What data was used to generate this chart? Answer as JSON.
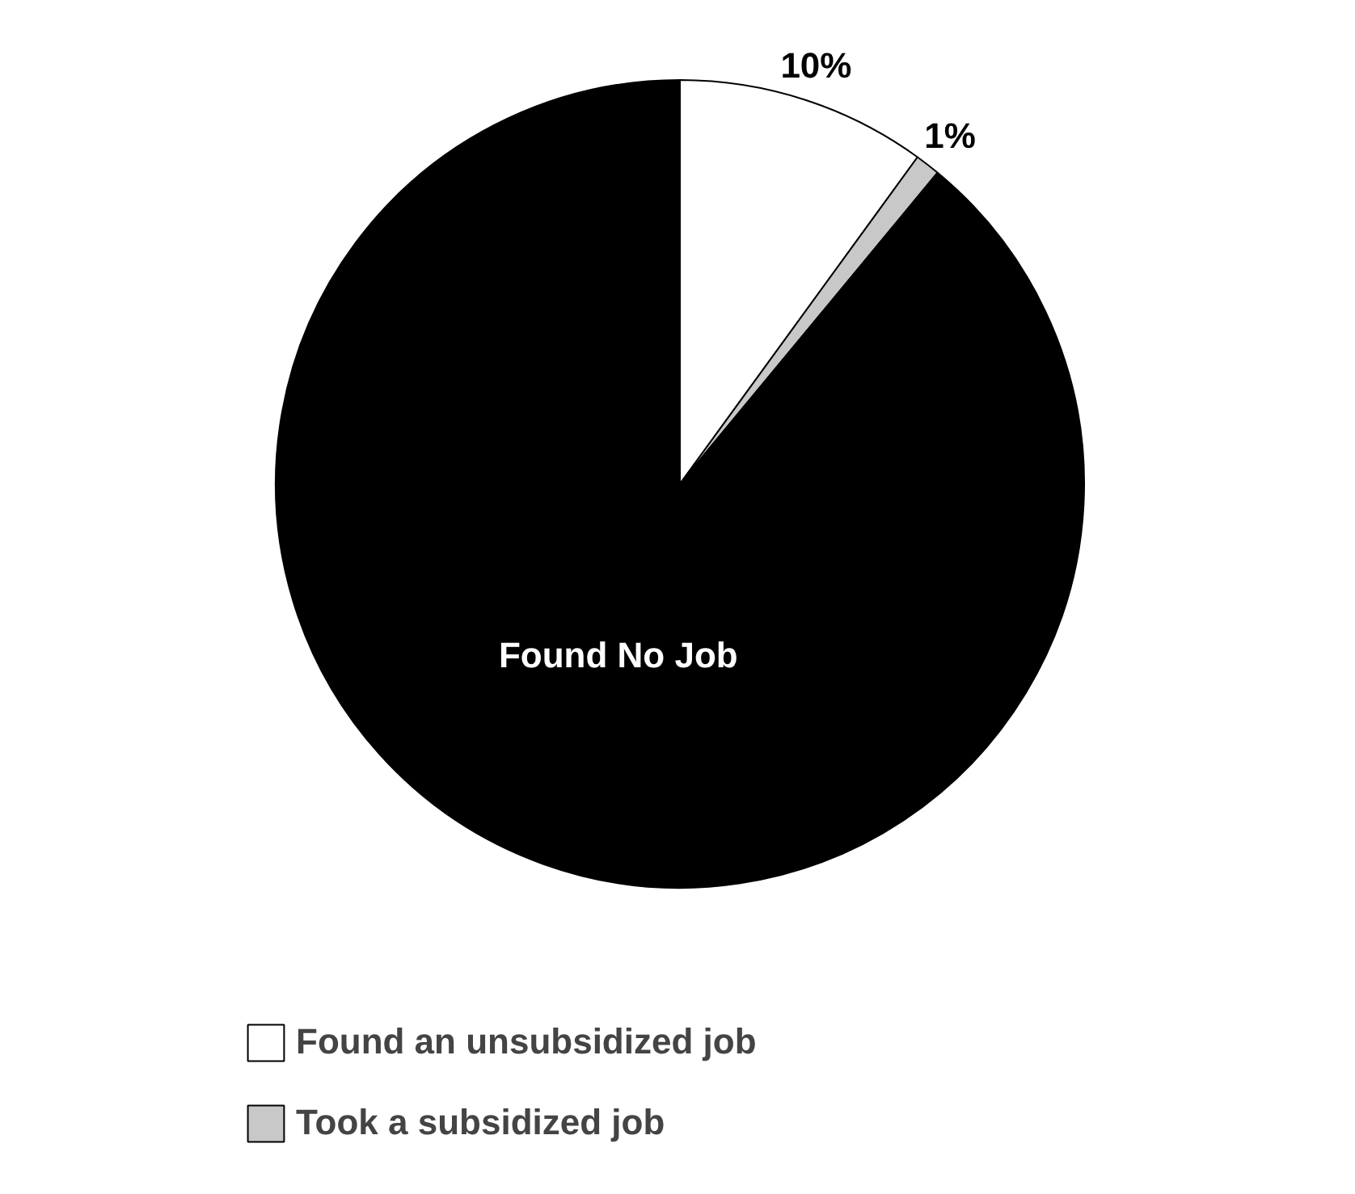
{
  "chart_data": {
    "type": "pie",
    "categories": [
      "Found an unsubsidized job",
      "Took a subsidized job",
      "Found No Job"
    ],
    "values": [
      10,
      1,
      89
    ],
    "colors": [
      "#ffffff",
      "#c8c8c8",
      "#000000"
    ],
    "value_labels": [
      "10%",
      "1%",
      null
    ],
    "legend": "bottom"
  }
}
